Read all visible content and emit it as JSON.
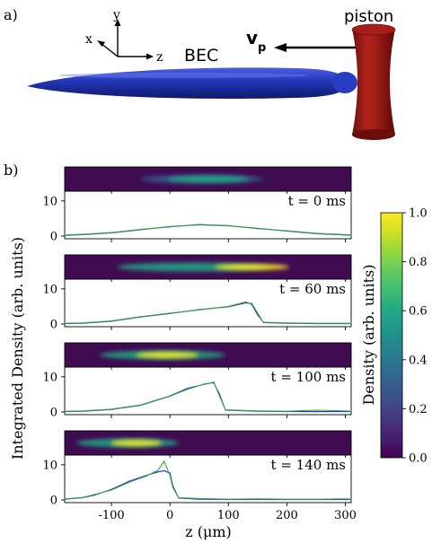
{
  "panel_a": {
    "label": "a)",
    "axes": {
      "x": "x",
      "y": "y",
      "z": "z"
    },
    "bec_label": "BEC",
    "piston_label": "piston",
    "velocity_label": "v",
    "velocity_subscript": "p",
    "colors": {
      "bec": "#2436b8",
      "piston": "#9b1a16"
    }
  },
  "panel_b": {
    "label": "b)",
    "ylabel": "Integrated Density (arb. units)",
    "xlabel": "z (μm)",
    "colorbar": {
      "label": "Density (arb. units)",
      "ticks": [
        "1.0",
        "0.8",
        "0.6",
        "0.4",
        "0.2",
        "0.0"
      ],
      "colormap": "viridis"
    },
    "line_colors": {
      "theory": "#1f2fd6",
      "data": "#3aa63a"
    }
  },
  "chart_data": [
    {
      "type": "line",
      "label": "t = 0 ms",
      "xlim": [
        -180,
        310
      ],
      "ylim": [
        0,
        12
      ],
      "yticks": [
        0,
        10
      ],
      "xticks": [
        -100,
        0,
        100,
        200,
        300
      ],
      "image_extent_z": [
        -50,
        160
      ],
      "image_peak": 0.55,
      "series": [
        {
          "x": [
            -180,
            -150,
            -100,
            -50,
            0,
            50,
            100,
            150,
            200,
            250,
            300,
            310
          ],
          "values": [
            0.2,
            0.4,
            0.9,
            1.8,
            2.7,
            3.2,
            2.9,
            2.2,
            1.4,
            0.7,
            0.3,
            0.2
          ]
        },
        {
          "x": [
            -180,
            -150,
            -100,
            -50,
            0,
            50,
            100,
            150,
            200,
            250,
            300,
            310
          ],
          "values": [
            0.3,
            0.5,
            1.0,
            1.9,
            2.6,
            3.3,
            3.0,
            2.1,
            1.5,
            0.8,
            0.4,
            0.3
          ]
        }
      ]
    },
    {
      "type": "line",
      "label": "t = 60 ms",
      "xlim": [
        -180,
        310
      ],
      "ylim": [
        0,
        12
      ],
      "yticks": [
        0,
        10
      ],
      "xticks": [
        -100,
        0,
        100,
        200,
        300
      ],
      "image_extent_z": [
        -90,
        165
      ],
      "image_peak": 1.0,
      "series": [
        {
          "x": [
            -180,
            -150,
            -100,
            -50,
            0,
            50,
            100,
            130,
            140,
            150,
            160,
            200,
            250,
            300,
            310
          ],
          "values": [
            0.1,
            0.2,
            0.8,
            2.0,
            3.0,
            4.1,
            4.9,
            6.0,
            5.8,
            3.0,
            0.4,
            0.2,
            0.1,
            0.1,
            0.1
          ]
        },
        {
          "x": [
            -180,
            -150,
            -100,
            -50,
            0,
            50,
            100,
            130,
            140,
            150,
            160,
            200,
            250,
            300,
            310
          ],
          "values": [
            0.2,
            0.3,
            0.9,
            2.1,
            3.1,
            4.0,
            5.0,
            6.3,
            5.5,
            2.5,
            0.5,
            0.3,
            0.2,
            0.2,
            0.2
          ]
        }
      ]
    },
    {
      "type": "line",
      "label": "t = 100 ms",
      "xlim": [
        -180,
        310
      ],
      "ylim": [
        0,
        12
      ],
      "yticks": [
        0,
        10
      ],
      "xticks": [
        -100,
        0,
        100,
        200,
        300
      ],
      "image_extent_z": [
        -120,
        95
      ],
      "image_peak": 1.0,
      "series": [
        {
          "x": [
            -180,
            -150,
            -100,
            -50,
            0,
            30,
            60,
            75,
            85,
            95,
            150,
            200,
            250,
            300,
            310
          ],
          "values": [
            0.1,
            0.2,
            0.7,
            1.9,
            4.5,
            6.5,
            8.0,
            8.3,
            5.0,
            0.5,
            0.2,
            0.1,
            0.1,
            0.1,
            0.1
          ]
        },
        {
          "x": [
            -180,
            -150,
            -100,
            -50,
            0,
            30,
            60,
            75,
            85,
            95,
            150,
            200,
            250,
            300,
            310
          ],
          "values": [
            0.2,
            0.3,
            0.8,
            2.0,
            4.6,
            6.8,
            7.9,
            8.5,
            4.5,
            0.6,
            0.3,
            0.2,
            0.5,
            0.3,
            0.2
          ]
        }
      ]
    },
    {
      "type": "line",
      "label": "t = 140 ms",
      "xlim": [
        -180,
        310
      ],
      "ylim": [
        0,
        12
      ],
      "yticks": [
        0,
        10
      ],
      "xticks": [
        -100,
        0,
        100,
        200,
        300
      ],
      "image_extent_z": [
        -160,
        15
      ],
      "image_peak": 1.0,
      "series": [
        {
          "x": [
            -180,
            -150,
            -130,
            -100,
            -70,
            -40,
            -20,
            -10,
            0,
            5,
            15,
            50,
            100,
            150,
            200,
            250,
            300,
            310
          ],
          "values": [
            0.2,
            0.6,
            1.3,
            3.0,
            5.3,
            7.0,
            8.0,
            8.3,
            7.6,
            4.0,
            0.5,
            0.2,
            0.1,
            0.1,
            0.1,
            0.1,
            0.1,
            0.1
          ]
        },
        {
          "x": [
            -180,
            -150,
            -130,
            -100,
            -70,
            -40,
            -20,
            -10,
            0,
            5,
            15,
            50,
            100,
            150,
            200,
            250,
            300,
            310
          ],
          "values": [
            0.3,
            0.7,
            1.5,
            2.8,
            5.0,
            6.8,
            8.5,
            11.0,
            7.0,
            3.5,
            0.6,
            0.4,
            0.2,
            0.3,
            0.2,
            0.2,
            0.3,
            0.2
          ]
        }
      ]
    }
  ]
}
